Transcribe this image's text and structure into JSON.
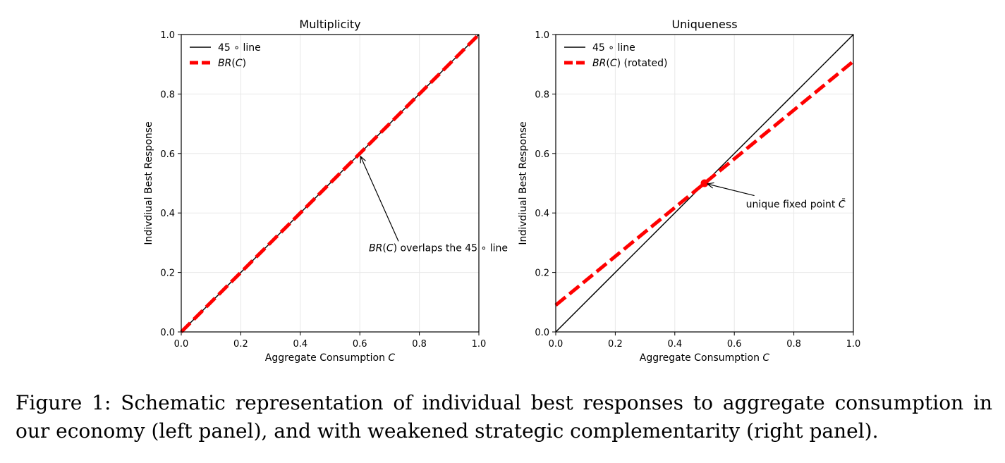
{
  "figure": {
    "caption": "Figure 1: Schematic representation of individual best responses to aggregate consumption in our economy (left panel), and with weakened strategic complementarity (right panel)."
  },
  "colors": {
    "reference_line": "#000000",
    "best_response": "#ff0000",
    "grid": "#e8e8e8"
  },
  "chart_data": [
    {
      "type": "line",
      "title": "Multiplicity",
      "xlabel": "Aggregate Consumption C",
      "ylabel": "Indivdiual Best Response",
      "xlim": [
        0.0,
        1.0
      ],
      "ylim": [
        0.0,
        1.0
      ],
      "xticks": [
        "0.0",
        "0.2",
        "0.4",
        "0.6",
        "0.8",
        "1.0"
      ],
      "yticks": [
        "0.0",
        "0.2",
        "0.4",
        "0.6",
        "0.8",
        "1.0"
      ],
      "grid": true,
      "legend_position": "top-left",
      "series": [
        {
          "name": "45 ∘ line",
          "x": [
            0.0,
            1.0
          ],
          "y": [
            0.0,
            1.0
          ],
          "style": "solid",
          "color": "#000000"
        },
        {
          "name": "BR(C)",
          "x": [
            0.0,
            1.0
          ],
          "y": [
            0.0,
            1.0
          ],
          "style": "dashed",
          "color": "#ff0000"
        }
      ],
      "annotations": [
        {
          "text": "BR(C) overlaps the 45 ∘ line",
          "point": [
            0.6,
            0.6
          ],
          "text_at": [
            0.5,
            0.3
          ]
        }
      ]
    },
    {
      "type": "line",
      "title": "Uniqueness",
      "xlabel": "Aggregate Consumption C",
      "ylabel": "Indivdiual Best Response",
      "xlim": [
        0.0,
        1.0
      ],
      "ylim": [
        0.0,
        1.0
      ],
      "xticks": [
        "0.0",
        "0.2",
        "0.4",
        "0.6",
        "0.8",
        "1.0"
      ],
      "yticks": [
        "0.0",
        "0.2",
        "0.4",
        "0.6",
        "0.8",
        "1.0"
      ],
      "grid": true,
      "legend_position": "top-left",
      "series": [
        {
          "name": "45 ∘ line",
          "x": [
            0.0,
            1.0
          ],
          "y": [
            0.0,
            1.0
          ],
          "style": "solid",
          "color": "#000000"
        },
        {
          "name": "BR(C) (rotated)",
          "x": [
            0.0,
            1.0
          ],
          "y": [
            0.09,
            0.91
          ],
          "style": "dashed",
          "color": "#ff0000"
        }
      ],
      "fixed_point": {
        "x": 0.5,
        "y": 0.5
      },
      "annotations": [
        {
          "text": "unique fixed point C̄",
          "point": [
            0.5,
            0.5
          ],
          "text_at": [
            0.62,
            0.43
          ]
        }
      ]
    }
  ]
}
